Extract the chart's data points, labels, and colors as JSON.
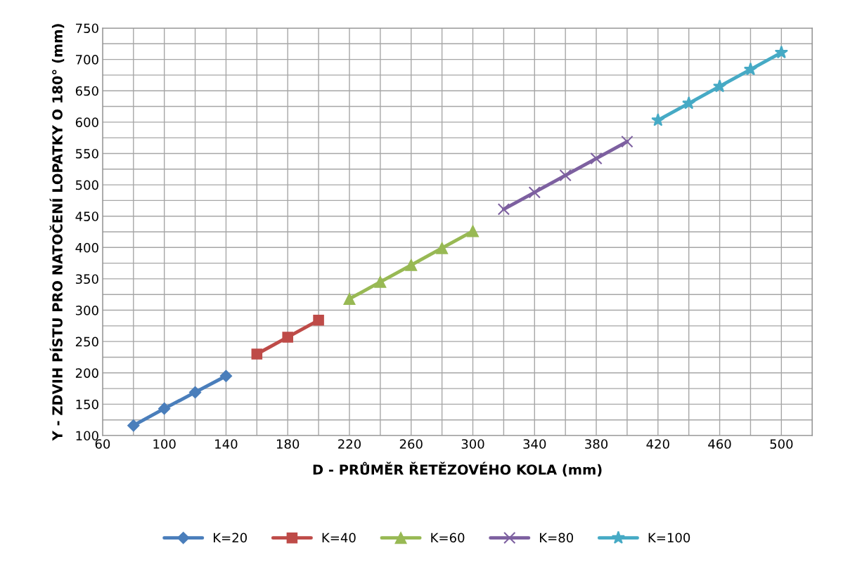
{
  "chart_data": {
    "type": "line",
    "xlabel": "D - PRŮMĚR ŘETĚZOVÉHO KOLA (mm)",
    "ylabel": "Y - ZDVIH PÍSTU PRO NATOČENÍ LOPATKY O 180° (mm)",
    "series": [
      {
        "name": "K=20",
        "color": "#4a7ebb",
        "marker": "diamond",
        "x": [
          80,
          100,
          120,
          140
        ],
        "values": [
          116,
          143,
          169,
          195
        ]
      },
      {
        "name": "K=40",
        "color": "#be4b48",
        "marker": "square",
        "x": [
          160,
          180,
          200
        ],
        "values": [
          230,
          257,
          284
        ]
      },
      {
        "name": "K=60",
        "color": "#98b954",
        "marker": "triangle",
        "x": [
          220,
          240,
          260,
          280,
          300
        ],
        "values": [
          318,
          345,
          372,
          399,
          426
        ]
      },
      {
        "name": "K=80",
        "color": "#7d60a0",
        "marker": "cross",
        "x": [
          320,
          340,
          360,
          380,
          400
        ],
        "values": [
          461,
          488,
          515,
          542,
          569
        ]
      },
      {
        "name": "K=100",
        "color": "#46aac5",
        "marker": "star",
        "x": [
          420,
          440,
          460,
          480,
          500
        ],
        "values": [
          603,
          630,
          657,
          684,
          711
        ]
      }
    ],
    "xlim": [
      60,
      520
    ],
    "xticks": [
      60,
      {
        "value": 80,
        "label": null
      },
      100,
      {
        "value": 120,
        "label": null
      },
      140,
      {
        "value": 160,
        "label": null
      },
      180,
      {
        "value": 200,
        "label": null
      },
      220,
      {
        "value": 240,
        "label": null
      },
      260,
      {
        "value": 280,
        "label": null
      },
      300,
      {
        "value": 320,
        "label": null
      },
      340,
      {
        "value": 360,
        "label": null
      },
      380,
      {
        "value": 400,
        "label": null
      },
      420,
      {
        "value": 440,
        "label": null
      },
      460,
      {
        "value": 480,
        "label": null
      },
      500,
      {
        "value": 520,
        "label": null
      }
    ],
    "ylim": [
      100,
      750
    ],
    "yticks": [
      100,
      {
        "value": 125,
        "label": null
      },
      150,
      {
        "value": 175,
        "label": null
      },
      200,
      {
        "value": 225,
        "label": null
      },
      250,
      {
        "value": 275,
        "label": null
      },
      300,
      {
        "value": 325,
        "label": null
      },
      350,
      {
        "value": 375,
        "label": null
      },
      400,
      {
        "value": 425,
        "label": null
      },
      450,
      {
        "value": 475,
        "label": null
      },
      500,
      {
        "value": 525,
        "label": null
      },
      550,
      {
        "value": 575,
        "label": null
      },
      600,
      {
        "value": 625,
        "label": null
      },
      650,
      {
        "value": 675,
        "label": null
      },
      700,
      {
        "value": 725,
        "label": null
      },
      750
    ],
    "grid": true,
    "legend": "bottom",
    "line_style": "solid"
  }
}
